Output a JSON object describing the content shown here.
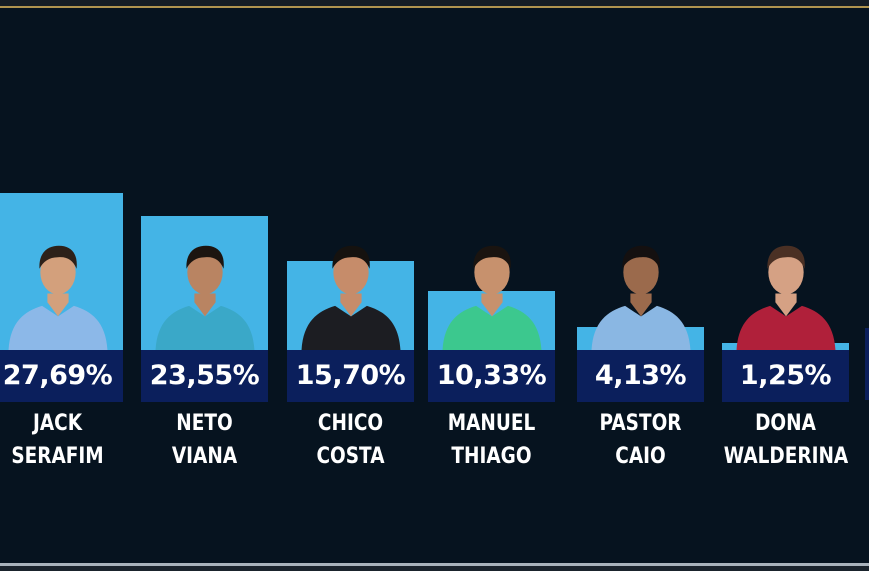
{
  "chart_data": {
    "type": "bar",
    "categories": [
      "JACK SERAFIM",
      "NETO VIANA",
      "CHICO COSTA",
      "MANUEL THIAGO",
      "PASTOR CAIO",
      "DONA WALDERINA"
    ],
    "name_lines": [
      [
        "JACK",
        "SERAFIM"
      ],
      [
        "NETO",
        "VIANA"
      ],
      [
        "CHICO",
        "COSTA"
      ],
      [
        "MANUEL",
        "THIAGO"
      ],
      [
        "PASTOR",
        "CAIO"
      ],
      [
        "DONA",
        "WALDERINA"
      ]
    ],
    "values": [
      27.69,
      23.55,
      15.7,
      10.33,
      4.13,
      1.25
    ],
    "data_labels": [
      "27,69%",
      "23,55%",
      "15,70%",
      "10,33%",
      "4,13%",
      "1,25%"
    ],
    "unit": "%",
    "title": "",
    "xlabel": "",
    "ylabel": "",
    "grid": false,
    "legend": "none",
    "colors": {
      "background": "#06131f",
      "bar": "#44b4e6",
      "label_box": "#0b1f5c",
      "text": "#ffffff",
      "accent_line": "#b0944f"
    }
  },
  "candidates": [
    {
      "shirt": "#8cb8e8",
      "skin": "#d3a07c",
      "hair": "#2d2119"
    },
    {
      "shirt": "#3aa8c8",
      "skin": "#b98462",
      "hair": "#1c1510"
    },
    {
      "shirt": "#1c1d22",
      "skin": "#c68c6a",
      "hair": "#15120f"
    },
    {
      "shirt": "#3cc88e",
      "skin": "#c7916d",
      "hair": "#1a1410"
    },
    {
      "shirt": "#8ab7e3",
      "skin": "#9b6a4c",
      "hair": "#141010"
    },
    {
      "shirt": "#b0203a",
      "skin": "#d5a184",
      "hair": "#4a3024"
    }
  ]
}
